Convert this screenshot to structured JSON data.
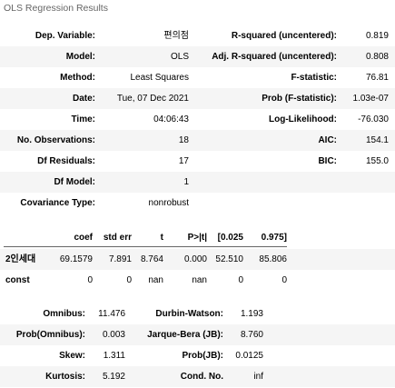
{
  "caption": "OLS Regression Results",
  "summary": {
    "left": [
      {
        "label": "Dep. Variable:",
        "value": "편의점"
      },
      {
        "label": "Model:",
        "value": "OLS"
      },
      {
        "label": "Method:",
        "value": "Least Squares"
      },
      {
        "label": "Date:",
        "value": "Tue, 07 Dec 2021"
      },
      {
        "label": "Time:",
        "value": "04:06:43"
      },
      {
        "label": "No. Observations:",
        "value": "18"
      },
      {
        "label": "Df Residuals:",
        "value": "17"
      },
      {
        "label": "Df Model:",
        "value": "1"
      },
      {
        "label": "Covariance Type:",
        "value": "nonrobust"
      }
    ],
    "right": [
      {
        "label": "R-squared (uncentered):",
        "value": "0.819"
      },
      {
        "label": "Adj. R-squared (uncentered):",
        "value": "0.808"
      },
      {
        "label": "F-statistic:",
        "value": "76.81"
      },
      {
        "label": "Prob (F-statistic):",
        "value": "1.03e-07"
      },
      {
        "label": "Log-Likelihood:",
        "value": "-76.030"
      },
      {
        "label": "AIC:",
        "value": "154.1"
      },
      {
        "label": "BIC:",
        "value": "155.0"
      }
    ]
  },
  "coef_table": {
    "headers": [
      "coef",
      "std err",
      "t",
      "P>|t|",
      "[0.025",
      "0.975]"
    ],
    "rows": [
      {
        "name": "2인세대",
        "cells": [
          "69.1579",
          "7.891",
          "8.764",
          "0.000",
          "52.510",
          "85.806"
        ]
      },
      {
        "name": "const",
        "cells": [
          "0",
          "0",
          "nan",
          "nan",
          "0",
          "0"
        ]
      }
    ]
  },
  "diagnostics": [
    {
      "l1": "Omnibus:",
      "v1": "11.476",
      "l2": "Durbin-Watson:",
      "v2": "1.193"
    },
    {
      "l1": "Prob(Omnibus):",
      "v1": "0.003",
      "l2": "Jarque-Bera (JB):",
      "v2": "8.760"
    },
    {
      "l1": "Skew:",
      "v1": "1.311",
      "l2": "Prob(JB):",
      "v2": "0.0125"
    },
    {
      "l1": "Kurtosis:",
      "v1": "5.192",
      "l2": "Cond. No.",
      "v2": "inf"
    }
  ]
}
